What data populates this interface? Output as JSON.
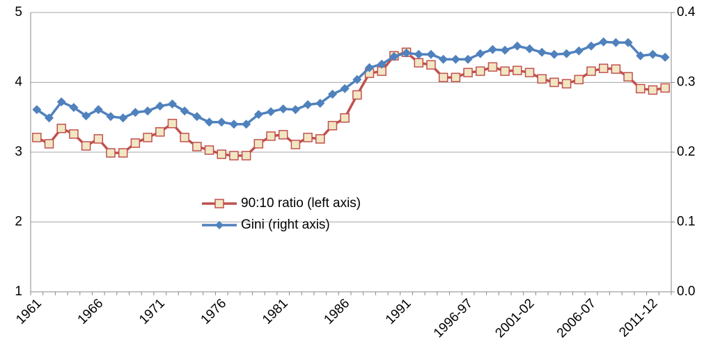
{
  "chart_data": {
    "type": "line",
    "categories": [
      "1961",
      null,
      null,
      null,
      null,
      "1966",
      null,
      null,
      null,
      null,
      "1971",
      null,
      null,
      null,
      null,
      "1976",
      null,
      null,
      null,
      null,
      "1981",
      null,
      null,
      null,
      null,
      "1986",
      null,
      null,
      null,
      null,
      "1991",
      null,
      null,
      null,
      null,
      "1996-97",
      null,
      null,
      null,
      null,
      "2001-02",
      null,
      null,
      null,
      null,
      "2006-07",
      null,
      null,
      null,
      null,
      "2011-12",
      null
    ],
    "series": [
      {
        "name": "90:10 ratio (left axis)",
        "color": "#c0504d",
        "marker_fill": "#f2e6c4",
        "marker": "square",
        "values": [
          3.21,
          3.12,
          3.34,
          3.26,
          3.09,
          3.19,
          2.99,
          2.99,
          3.13,
          3.21,
          3.29,
          3.41,
          3.21,
          3.08,
          3.03,
          2.97,
          2.95,
          2.95,
          3.12,
          3.23,
          3.25,
          3.11,
          3.21,
          3.19,
          3.38,
          3.49,
          3.82,
          4.13,
          4.16,
          4.38,
          4.43,
          4.28,
          4.25,
          4.07,
          4.07,
          4.14,
          4.16,
          4.22,
          4.16,
          4.17,
          4.14,
          4.05,
          4.0,
          3.98,
          4.04,
          4.16,
          4.2,
          4.19,
          4.08,
          3.91,
          3.89,
          3.92
        ]
      },
      {
        "name": "Gini (right axis)",
        "color": "#4f81bd",
        "marker": "diamond",
        "axis": "y2",
        "values": [
          0.261,
          0.249,
          0.272,
          0.264,
          0.252,
          0.261,
          0.251,
          0.249,
          0.257,
          0.259,
          0.266,
          0.269,
          0.259,
          0.251,
          0.243,
          0.243,
          0.24,
          0.24,
          0.254,
          0.258,
          0.262,
          0.261,
          0.268,
          0.27,
          0.283,
          0.291,
          0.304,
          0.321,
          0.326,
          0.337,
          0.342,
          0.34,
          0.34,
          0.333,
          0.333,
          0.333,
          0.341,
          0.347,
          0.346,
          0.352,
          0.348,
          0.343,
          0.34,
          0.341,
          0.345,
          0.352,
          0.358,
          0.357,
          0.357,
          0.338,
          0.34,
          0.336
        ]
      }
    ],
    "ylim": [
      1,
      5
    ],
    "yticks": [
      1,
      2,
      3,
      4,
      5
    ],
    "y2lim": [
      0,
      0.4
    ],
    "y2ticks": [
      {
        "value": 0,
        "label": "0.0"
      },
      0.1,
      0.2,
      0.3,
      0.4
    ],
    "grid": true
  }
}
